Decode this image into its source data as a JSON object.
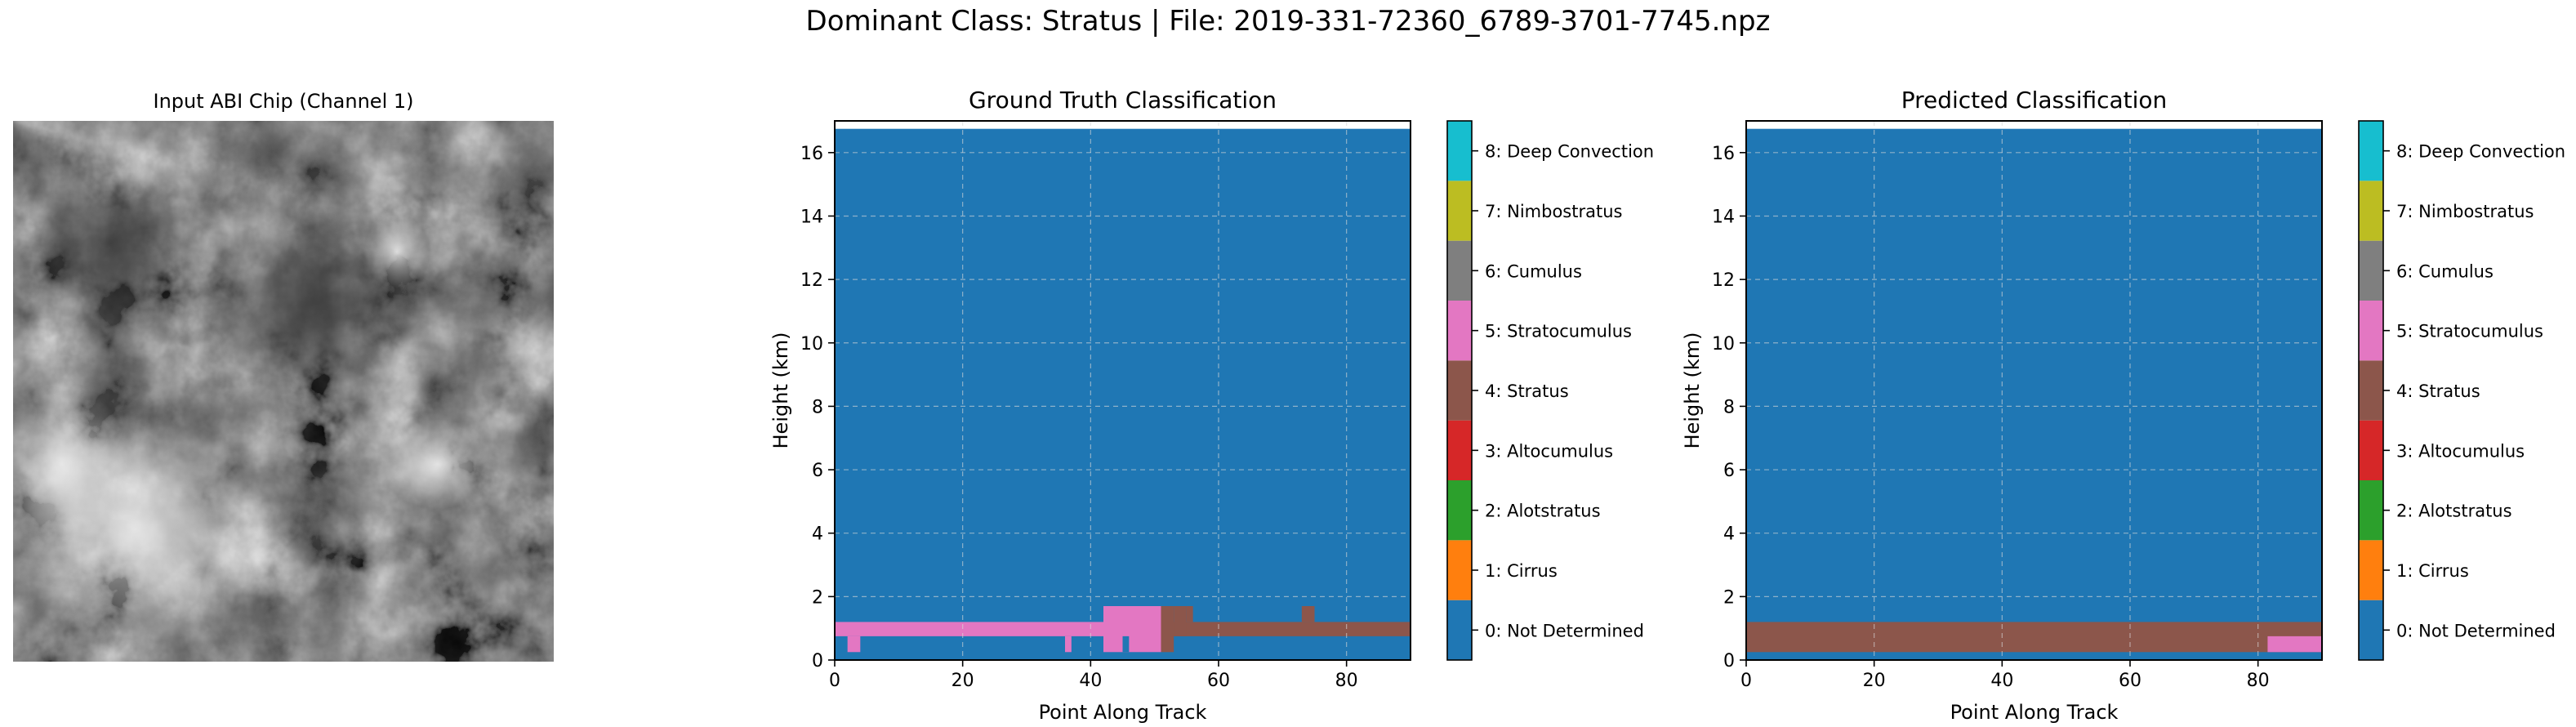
{
  "figure": {
    "title": "Dominant Class: Stratus | File: 2019-331-72360_6789-3701-7745.npz",
    "input_title": "Input ABI Chip (Channel 1)"
  },
  "chart_data": [
    {
      "type": "heatmap",
      "title": "Ground Truth Classification",
      "xlabel": "Point Along Track",
      "ylabel": "Height (km)",
      "xlim": [
        0,
        90
      ],
      "ylim": [
        0,
        17
      ],
      "grid": true,
      "xticks": [
        0,
        20,
        40,
        60,
        80
      ],
      "yticks": [
        0,
        2,
        4,
        6,
        8,
        10,
        12,
        14,
        16
      ],
      "background_class": 0,
      "class_regions": [
        {
          "class": 5,
          "x": [
            0,
            42
          ],
          "y": [
            0.75,
            1.2
          ]
        },
        {
          "class": 5,
          "x": [
            42,
            51
          ],
          "y": [
            0.25,
            1.7
          ]
        },
        {
          "class": 4,
          "x": [
            51,
            90
          ],
          "y": [
            0.75,
            1.2
          ]
        },
        {
          "class": 4,
          "x": [
            51,
            53
          ],
          "y": [
            0.25,
            1.7
          ]
        },
        {
          "class": 4,
          "x": [
            53,
            55
          ],
          "y": [
            0.75,
            1.7
          ]
        },
        {
          "class": 4,
          "x": [
            55,
            56
          ],
          "y": [
            1.2,
            1.7
          ]
        },
        {
          "class": 4,
          "x": [
            73,
            75
          ],
          "y": [
            1.2,
            1.7
          ]
        },
        {
          "class": 5,
          "x": [
            2,
            4
          ],
          "y": [
            0.25,
            0.75
          ]
        },
        {
          "class": 5,
          "x": [
            36,
            37
          ],
          "y": [
            0.25,
            0.75
          ]
        },
        {
          "class": 0,
          "x": [
            45,
            46
          ],
          "y": [
            0.25,
            0.75
          ]
        }
      ],
      "colorbar": [
        "0: Not Determined",
        "1: Cirrus",
        "2: Alotstratus",
        "3: Altocumulus",
        "4: Stratus",
        "5: Stratocumulus",
        "6: Cumulus",
        "7: Nimbostratus",
        "8: Deep Convection"
      ]
    },
    {
      "type": "heatmap",
      "title": "Predicted Classification",
      "xlabel": "Point Along Track",
      "ylabel": "Height (km)",
      "xlim": [
        0,
        90
      ],
      "ylim": [
        0,
        17
      ],
      "grid": true,
      "xticks": [
        0,
        20,
        40,
        60,
        80
      ],
      "yticks": [
        0,
        2,
        4,
        6,
        8,
        10,
        12,
        14,
        16
      ],
      "background_class": 0,
      "class_regions": [
        {
          "class": 4,
          "x": [
            0,
            90
          ],
          "y": [
            0.25,
            1.2
          ]
        },
        {
          "class": 5,
          "x": [
            81.5,
            90
          ],
          "y": [
            0.25,
            0.75
          ]
        }
      ],
      "colorbar": [
        "0: Not Determined",
        "1: Cirrus",
        "2: Alotstratus",
        "3: Altocumulus",
        "4: Stratus",
        "5: Stratocumulus",
        "6: Cumulus",
        "7: Nimbostratus",
        "8: Deep Convection"
      ]
    }
  ],
  "class_colors": [
    "#1f77b4",
    "#ff7f0e",
    "#2ca02c",
    "#d62728",
    "#8c564b",
    "#e377c2",
    "#7f7f7f",
    "#bcbd22",
    "#17becf"
  ]
}
